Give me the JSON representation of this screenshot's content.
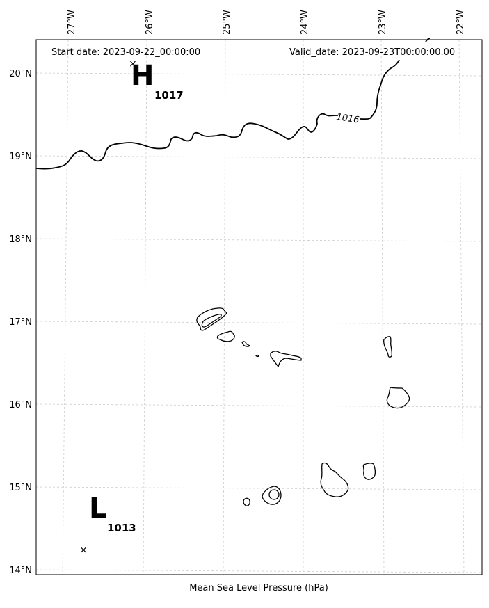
{
  "header": {
    "start_date": "Start date: 2023-09-22_00:00:00",
    "valid_date": "Valid_date: 2023-09-23T00:00:00.00"
  },
  "xlabel": "Mean Sea Level Pressure (hPa)",
  "longitude_ticks": [
    "27°W",
    "26°W",
    "25°W",
    "24°W",
    "23°W",
    "22°W"
  ],
  "latitude_ticks": [
    "20°N",
    "19°N",
    "18°N",
    "17°N",
    "16°N",
    "15°N",
    "14°N"
  ],
  "pressure_centers": {
    "high": {
      "letter": "H",
      "value": "1017"
    },
    "low": {
      "letter": "L",
      "value": "1013"
    }
  },
  "isobar_labels": [
    "1016"
  ],
  "colors": {
    "ink": "#000000",
    "grid": "#cccccc",
    "background": "#ffffff"
  }
}
